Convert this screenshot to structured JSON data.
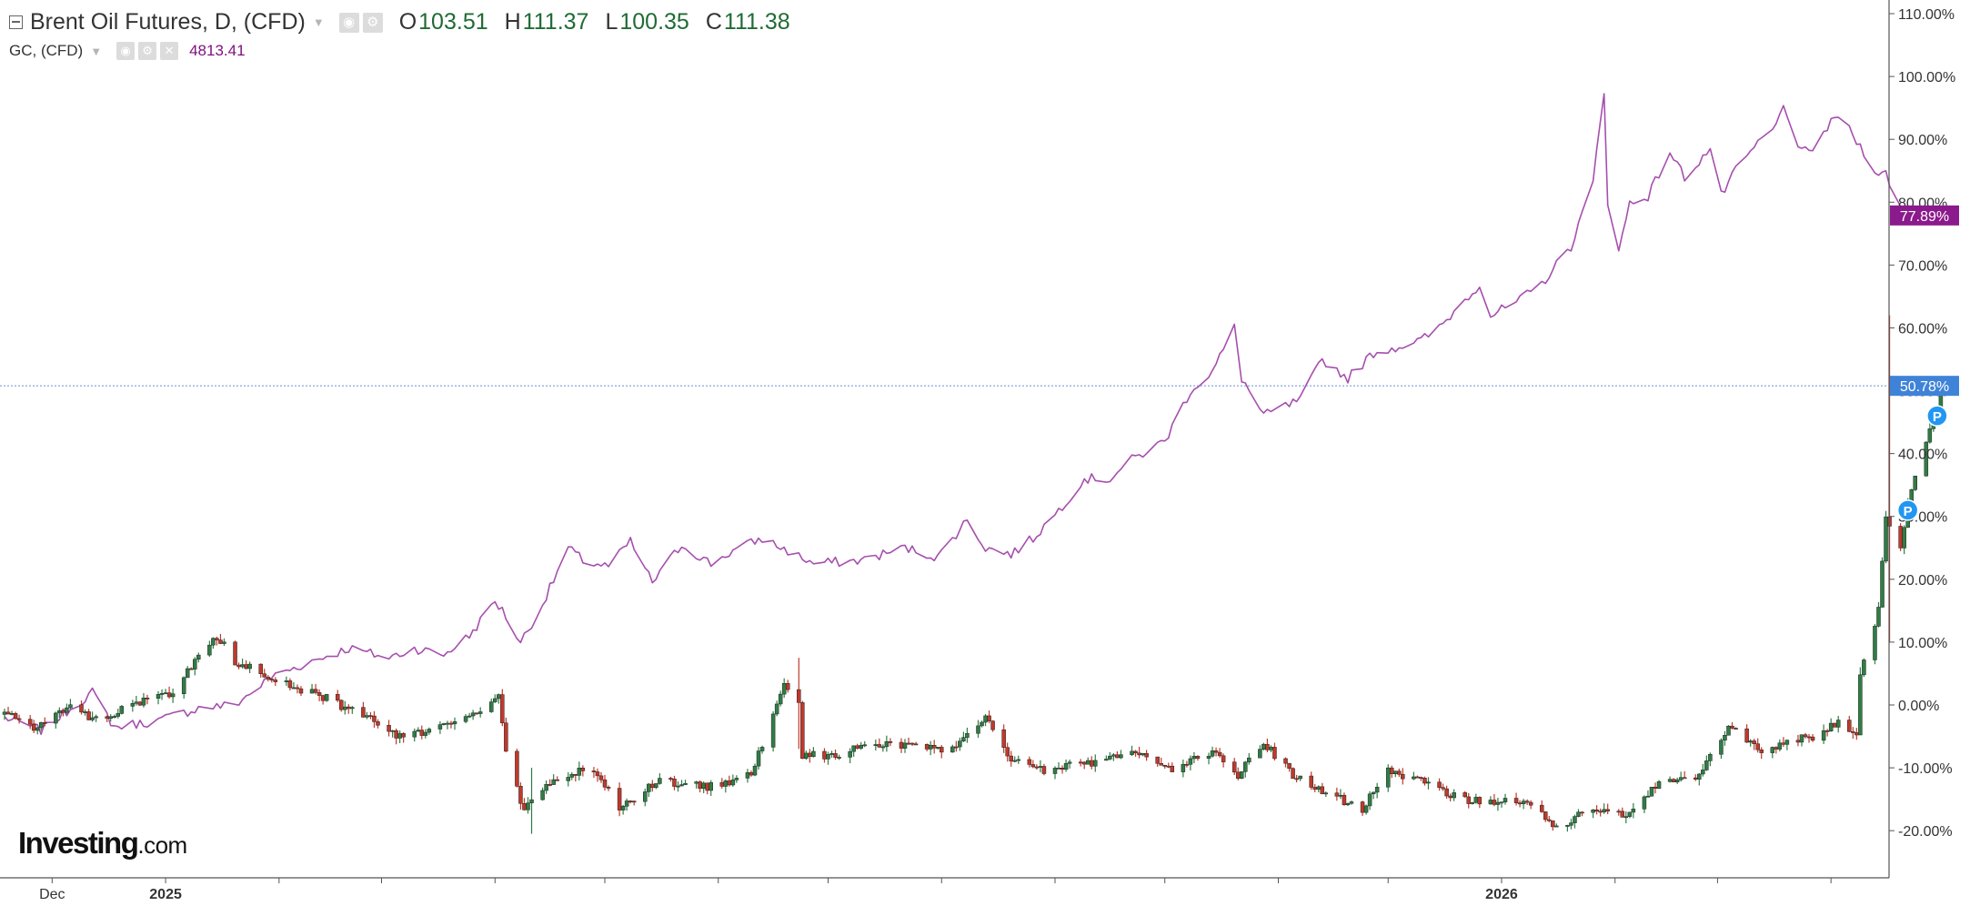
{
  "legend": {
    "main_title": "Brent Oil Futures, D, (CFD)",
    "open_label": "O",
    "open_value": "103.51",
    "high_label": "H",
    "high_value": "111.37",
    "low_label": "L",
    "low_value": "100.35",
    "close_label": "C",
    "close_value": "111.38",
    "secondary_title": "GC, (CFD)",
    "secondary_value": "4813.41",
    "icons": [
      "eye-icon",
      "gear-icon",
      "close-icon"
    ]
  },
  "logo": {
    "brand": "Investing",
    "suffix": ".com"
  },
  "colors": {
    "up": "#2f7d45",
    "down": "#c0392b",
    "gold_line": "#a64fae",
    "gold_badge": "#8b1a8c",
    "price_badge": "#3f83d8",
    "crosshair": "#6c8fd4",
    "marker": "#2196f3"
  },
  "chart_data": {
    "type": "candlestick",
    "y_axis": {
      "unit": "percent change",
      "ylim": [
        -27.5,
        110
      ],
      "ticks": [
        110,
        100,
        90,
        80,
        70,
        60,
        50,
        40,
        30,
        20,
        10,
        0,
        -10,
        -20
      ],
      "tick_labels": [
        "110.00%",
        "100.00%",
        "90.00%",
        "80.00%",
        "70.00%",
        "60.00%",
        "50.00%",
        "40.00%",
        "30.00%",
        "20.00%",
        "10.00%",
        "0.00%",
        "-10.00%",
        "-20.00%"
      ],
      "position": "right"
    },
    "x_axis": {
      "labels": [
        {
          "text": "Dec",
          "date": "2024-12-01",
          "bold": false
        },
        {
          "text": "2025",
          "date": "2025-01-01",
          "bold": true
        },
        {
          "text": "2026",
          "date": "2026-01-01",
          "bold": true
        }
      ],
      "range": [
        "2024-11-18",
        "2026-03-25"
      ]
    },
    "crosshair": {
      "value": 50.78,
      "label": "50.78%"
    },
    "series": [
      {
        "name": "Brent Oil Futures, D, (CFD)",
        "kind": "candlestick",
        "last_label": "50.78%",
        "anchors": [
          [
            "2024-11-18",
            -1.5
          ],
          [
            "2024-11-26",
            -3.5
          ],
          [
            "2024-12-06",
            -0.5
          ],
          [
            "2024-12-13",
            -2.5
          ],
          [
            "2024-12-24",
            0.5
          ],
          [
            "2025-01-03",
            2
          ],
          [
            "2025-01-10",
            8
          ],
          [
            "2025-01-15",
            11
          ],
          [
            "2025-01-20",
            7
          ],
          [
            "2025-01-31",
            4
          ],
          [
            "2025-02-14",
            1
          ],
          [
            "2025-02-25",
            -2
          ],
          [
            "2025-03-05",
            -5
          ],
          [
            "2025-03-12",
            -4.5
          ],
          [
            "2025-03-24",
            -2
          ],
          [
            "2025-04-02",
            1
          ],
          [
            "2025-04-04",
            -7
          ],
          [
            "2025-04-09",
            -17
          ],
          [
            "2025-04-16",
            -12
          ],
          [
            "2025-04-28",
            -10
          ],
          [
            "2025-05-05",
            -16.5
          ],
          [
            "2025-05-15",
            -12
          ],
          [
            "2025-05-30",
            -13
          ],
          [
            "2025-06-10",
            -11
          ],
          [
            "2025-06-19",
            3
          ],
          [
            "2025-06-23",
            0
          ],
          [
            "2025-06-24",
            -8
          ],
          [
            "2025-07-03",
            -8
          ],
          [
            "2025-07-14",
            -6
          ],
          [
            "2025-07-25",
            -6.5
          ],
          [
            "2025-08-05",
            -7
          ],
          [
            "2025-08-13",
            -2
          ],
          [
            "2025-08-19",
            -8
          ],
          [
            "2025-08-29",
            -10.5
          ],
          [
            "2025-09-12",
            -9
          ],
          [
            "2025-09-25",
            -7.5
          ],
          [
            "2025-10-03",
            -10
          ],
          [
            "2025-10-14",
            -7.5
          ],
          [
            "2025-10-21",
            -11
          ],
          [
            "2025-10-28",
            -6
          ],
          [
            "2025-11-05",
            -11
          ],
          [
            "2025-11-18",
            -15
          ],
          [
            "2025-11-24",
            -16.5
          ],
          [
            "2025-12-01",
            -10.5
          ],
          [
            "2025-12-11",
            -12.5
          ],
          [
            "2025-12-22",
            -15
          ],
          [
            "2026-01-05",
            -15.5
          ],
          [
            "2026-01-12",
            -17
          ],
          [
            "2026-01-16",
            -19.5
          ],
          [
            "2026-01-26",
            -16.5
          ],
          [
            "2026-02-05",
            -17.5
          ],
          [
            "2026-02-13",
            -12
          ],
          [
            "2026-02-23",
            -11.5
          ],
          [
            "2026-03-05",
            -3
          ],
          [
            "2026-03-12",
            -7.5
          ],
          [
            "2026-03-20",
            -6
          ],
          [
            "2026-03-27",
            -5
          ],
          [
            "2026-04-03",
            -3
          ],
          [
            "2026-04-08",
            -4.5
          ],
          [
            "2026-04-09",
            5
          ],
          [
            "2026-04-14",
            15
          ],
          [
            "2026-04-16",
            30
          ],
          [
            "2026-04-20",
            25
          ],
          [
            "2026-04-22",
            32
          ],
          [
            "2026-04-26",
            40
          ],
          [
            "2026-04-29",
            45
          ],
          [
            "2026-05-01",
            50.78
          ]
        ],
        "notable_wicks": [
          {
            "date": "2026-04-17",
            "high": 62,
            "low": 10
          },
          {
            "date": "2026-04-09",
            "high": 6,
            "low": 3
          },
          {
            "date": "2025-04-11",
            "high": -10,
            "low": -20.5
          },
          {
            "date": "2025-06-23",
            "high": 7.5,
            "low": -7
          }
        ],
        "markers": [
          {
            "date": "2026-04-22",
            "value": 31,
            "label": "P"
          },
          {
            "date": "2026-04-30",
            "value": 46,
            "label": "P"
          }
        ]
      },
      {
        "name": "GC, (CFD)",
        "kind": "line",
        "last_label": "77.89%",
        "anchors": [
          [
            "2024-11-18",
            -2
          ],
          [
            "2024-11-28",
            -4
          ],
          [
            "2024-12-12",
            2
          ],
          [
            "2024-12-18",
            -3.5
          ],
          [
            "2024-12-30",
            -2.5
          ],
          [
            "2025-01-10",
            -0.5
          ],
          [
            "2025-01-20",
            0
          ],
          [
            "2025-01-30",
            4.5
          ],
          [
            "2025-02-10",
            7
          ],
          [
            "2025-02-20",
            9
          ],
          [
            "2025-03-03",
            7.5
          ],
          [
            "2025-03-10",
            9
          ],
          [
            "2025-03-18",
            8
          ],
          [
            "2025-03-25",
            11
          ],
          [
            "2025-04-01",
            16.5
          ],
          [
            "2025-04-03",
            15
          ],
          [
            "2025-04-08",
            10
          ],
          [
            "2025-04-14",
            16
          ],
          [
            "2025-04-21",
            25
          ],
          [
            "2025-04-25",
            23
          ],
          [
            "2025-05-02",
            22
          ],
          [
            "2025-05-08",
            26
          ],
          [
            "2025-05-14",
            19.5
          ],
          [
            "2025-05-22",
            25.5
          ],
          [
            "2025-05-30",
            22.5
          ],
          [
            "2025-06-05",
            24.5
          ],
          [
            "2025-06-13",
            26.5
          ],
          [
            "2025-06-27",
            22.5
          ],
          [
            "2025-07-10",
            23
          ],
          [
            "2025-07-22",
            25
          ],
          [
            "2025-07-31",
            23.5
          ],
          [
            "2025-08-08",
            29.5
          ],
          [
            "2025-08-13",
            25
          ],
          [
            "2025-08-20",
            24
          ],
          [
            "2025-08-26",
            26.5
          ],
          [
            "2025-09-02",
            31
          ],
          [
            "2025-09-09",
            36
          ],
          [
            "2025-09-16",
            36
          ],
          [
            "2025-09-22",
            39
          ],
          [
            "2025-10-01",
            42
          ],
          [
            "2025-10-08",
            50
          ],
          [
            "2025-10-14",
            53
          ],
          [
            "2025-10-20",
            60
          ],
          [
            "2025-10-22",
            52
          ],
          [
            "2025-10-28",
            46
          ],
          [
            "2025-11-03",
            47.5
          ],
          [
            "2025-11-07",
            48.5
          ],
          [
            "2025-11-13",
            55
          ],
          [
            "2025-11-20",
            52
          ],
          [
            "2025-11-27",
            56
          ],
          [
            "2025-12-10",
            58
          ],
          [
            "2025-12-15",
            60
          ],
          [
            "2025-12-22",
            64.5
          ],
          [
            "2025-12-26",
            67
          ],
          [
            "2025-12-29",
            62
          ],
          [
            "2026-01-05",
            64
          ],
          [
            "2026-01-12",
            67
          ],
          [
            "2026-01-20",
            73
          ],
          [
            "2026-01-26",
            83
          ],
          [
            "2026-01-29",
            98
          ],
          [
            "2026-01-30",
            80
          ],
          [
            "2026-02-02",
            72
          ],
          [
            "2026-02-05",
            80
          ],
          [
            "2026-02-10",
            81
          ],
          [
            "2026-02-16",
            88
          ],
          [
            "2026-02-20",
            84
          ],
          [
            "2026-02-27",
            88.5
          ],
          [
            "2026-03-02",
            81
          ],
          [
            "2026-03-06",
            85
          ],
          [
            "2026-03-13",
            90
          ],
          [
            "2026-03-17",
            92
          ],
          [
            "2026-03-19",
            96
          ],
          [
            "2026-03-23",
            88
          ],
          [
            "2026-03-26",
            88
          ],
          [
            "2026-04-03",
            94
          ],
          [
            "2026-04-10",
            88
          ],
          [
            "2026-04-14",
            84.5
          ],
          [
            "2026-04-16",
            84.5
          ],
          [
            "2026-04-21",
            77.89
          ]
        ]
      }
    ]
  }
}
